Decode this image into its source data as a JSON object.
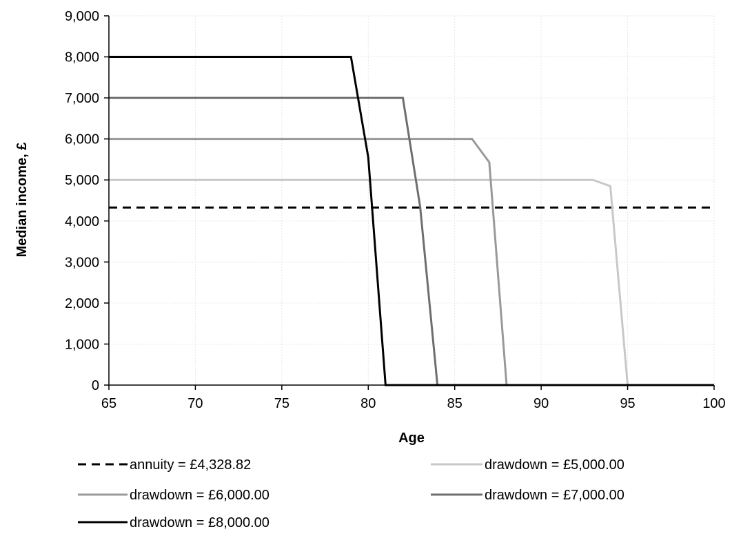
{
  "chart_data": {
    "type": "line",
    "title": "",
    "xlabel": "Age",
    "ylabel": "Median income, £",
    "xlim": [
      65,
      100
    ],
    "ylim": [
      0,
      9000
    ],
    "x_ticks": [
      65,
      70,
      75,
      80,
      85,
      90,
      95,
      100
    ],
    "x_tick_labels": [
      "65",
      "70",
      "75",
      "80",
      "85",
      "90",
      "95",
      "100"
    ],
    "y_ticks": [
      0,
      1000,
      2000,
      3000,
      4000,
      5000,
      6000,
      7000,
      8000,
      9000
    ],
    "y_tick_labels": [
      "0",
      "1,000",
      "2,000",
      "3,000",
      "4,000",
      "5,000",
      "6,000",
      "7,000",
      "8,000",
      "9,000"
    ],
    "grid": true,
    "legend_position": "bottom",
    "series": [
      {
        "name": "annuity = £4,328.82",
        "color": "#000000",
        "dash": "dashed",
        "points": [
          [
            65,
            4328.82
          ],
          [
            100,
            4328.82
          ]
        ]
      },
      {
        "name": "drawdown = £5,000.00",
        "color": "#c8c8c8",
        "dash": "solid",
        "points": [
          [
            65,
            5000
          ],
          [
            93,
            5000
          ],
          [
            94,
            4850
          ],
          [
            95,
            0
          ],
          [
            100,
            0
          ]
        ]
      },
      {
        "name": "drawdown = £6,000.00",
        "color": "#999999",
        "dash": "solid",
        "points": [
          [
            65,
            6000
          ],
          [
            86,
            6000
          ],
          [
            87,
            5430
          ],
          [
            88,
            0
          ],
          [
            100,
            0
          ]
        ]
      },
      {
        "name": "drawdown = £7,000.00",
        "color": "#6e6e6e",
        "dash": "solid",
        "points": [
          [
            65,
            7000
          ],
          [
            82,
            7000
          ],
          [
            83,
            4350
          ],
          [
            84,
            0
          ],
          [
            100,
            0
          ]
        ]
      },
      {
        "name": "drawdown = £8,000.00",
        "color": "#000000",
        "dash": "solid",
        "points": [
          [
            65,
            8000
          ],
          [
            79,
            8000
          ],
          [
            80,
            5550
          ],
          [
            81,
            0
          ],
          [
            100,
            0
          ]
        ]
      }
    ]
  }
}
